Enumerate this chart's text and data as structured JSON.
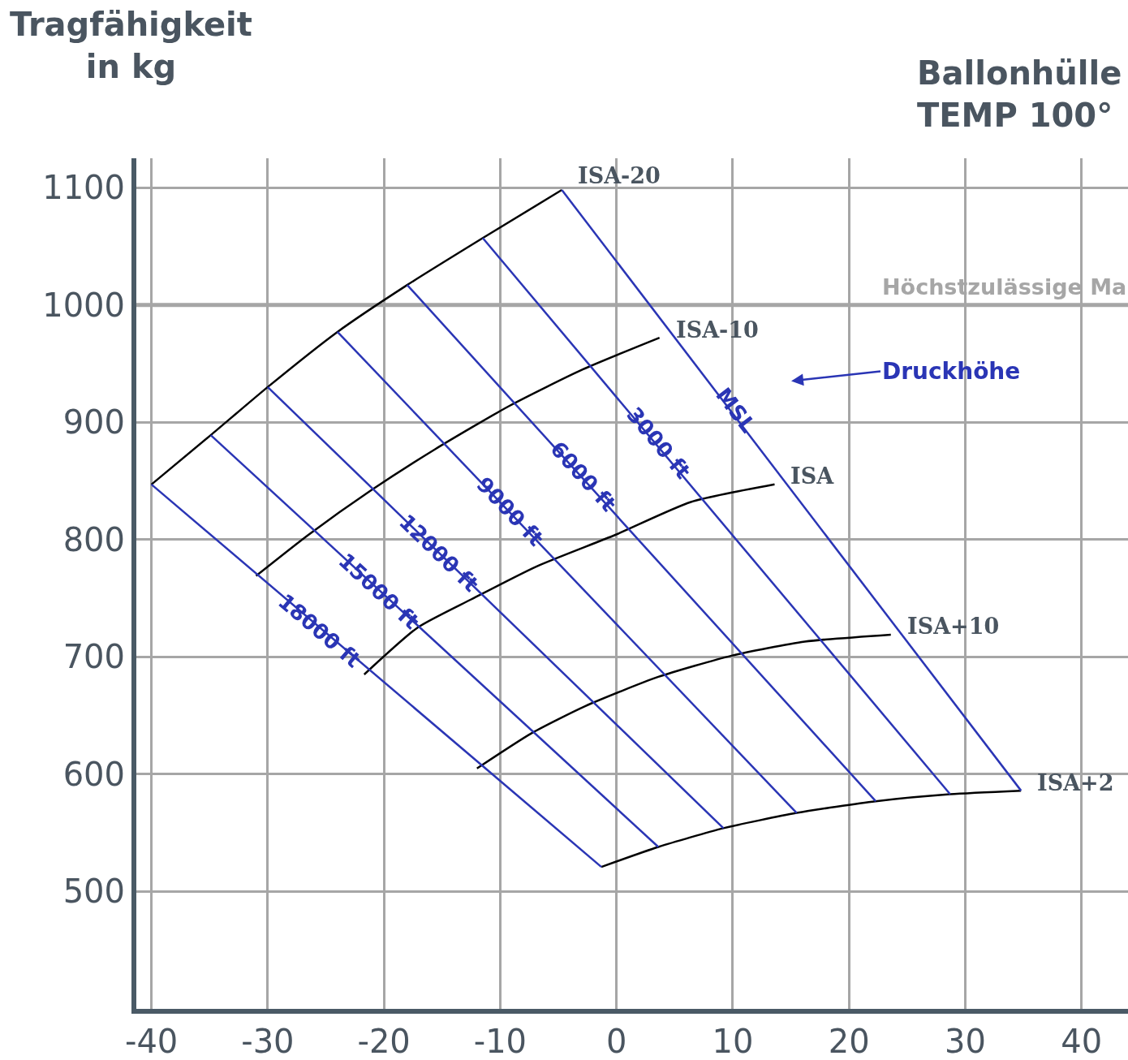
{
  "chart_data": {
    "type": "line",
    "title": "Ballonhülle\nTEMP 100°",
    "ylabel": "Tragfähigkeit\nin kg",
    "xlim": [
      -41.3,
      44
    ],
    "ylim": [
      400,
      1125
    ],
    "xticks": [
      -40,
      -30,
      -20,
      -10,
      0,
      10,
      20,
      30,
      40
    ],
    "yticks": [
      500,
      600,
      700,
      800,
      900,
      1000,
      1100
    ],
    "grid": true,
    "legend": false,
    "marker": "none",
    "line_style": "solid",
    "series": [
      {
        "name": "ISA-20",
        "color": "#000000",
        "x": [
          -40,
          -34.9,
          -30,
          -24,
          -18,
          -11.5,
          -4.7
        ],
        "values": [
          847,
          889,
          930,
          977,
          1017,
          1057,
          1098
        ]
      },
      {
        "name": "ISA-10",
        "color": "#000000",
        "x": [
          -31,
          -26.5,
          -21.1,
          -15.6,
          -9.2,
          -2.9,
          3.7
        ],
        "values": [
          769,
          804,
          842,
          877,
          914,
          945,
          972
        ]
      },
      {
        "name": "ISA",
        "color": "#000000",
        "x": [
          -21.7,
          -17.1,
          -12.5,
          -6.9,
          -0.1,
          6.4,
          13.6
        ],
        "values": [
          685,
          725,
          749,
          777,
          804,
          832,
          847
        ]
      },
      {
        "name": "ISA+10",
        "color": "#000000",
        "x": [
          -12,
          -7.3,
          -2.7,
          3.6,
          9.9,
          16.2,
          23.6
        ],
        "values": [
          605,
          635,
          658,
          683,
          701,
          713,
          719
        ]
      },
      {
        "name": "ISA+2",
        "color": "#000000",
        "x": [
          -1.3,
          3.6,
          9.2,
          15.5,
          22.3,
          28.7,
          34.8
        ],
        "values": [
          521,
          538,
          554,
          567,
          577,
          583,
          586
        ]
      },
      {
        "name": "MSL",
        "color": "#2a35b5",
        "x": [
          -4.7,
          34.8
        ],
        "values": [
          1098,
          586
        ]
      },
      {
        "name": "3000 ft",
        "color": "#2a35b5",
        "x": [
          -11.5,
          28.7
        ],
        "values": [
          1057,
          583
        ]
      },
      {
        "name": "6000 ft",
        "color": "#2a35b5",
        "x": [
          -18,
          22.3
        ],
        "values": [
          1017,
          577
        ]
      },
      {
        "name": "9000 ft",
        "color": "#2a35b5",
        "x": [
          -24,
          15.5
        ],
        "values": [
          977,
          567
        ]
      },
      {
        "name": "12000 ft",
        "color": "#2a35b5",
        "x": [
          -30,
          9.2
        ],
        "values": [
          930,
          554
        ]
      },
      {
        "name": "15000 ft",
        "color": "#2a35b5",
        "x": [
          -34.9,
          3.6
        ],
        "values": [
          889,
          538
        ]
      },
      {
        "name": "18000 ft",
        "color": "#2a35b5",
        "x": [
          -40,
          -1.3
        ],
        "values": [
          847,
          521
        ]
      }
    ],
    "ref_lines": [
      {
        "axis": "y",
        "value": 1000,
        "label": "Höchstzulässige Ma",
        "color": "#a6a6a6"
      }
    ],
    "annotations": [
      "Druckhöhe"
    ]
  }
}
